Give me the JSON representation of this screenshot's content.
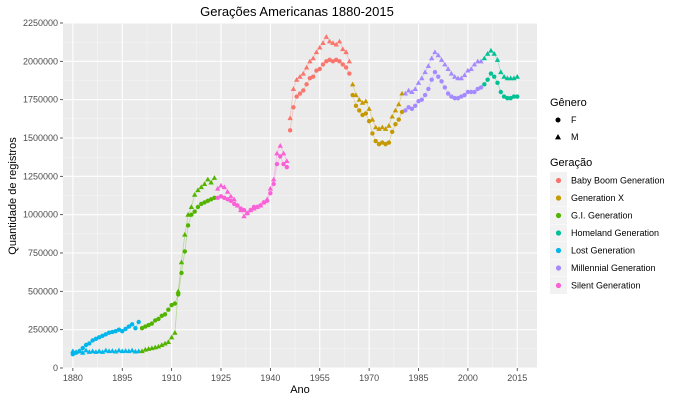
{
  "chart_data": {
    "type": "scatter",
    "title": "Gerações Americanas 1880-2015",
    "xlabel": "Ano",
    "ylabel": "Quantidade de registros",
    "xlim": [
      1877,
      2021
    ],
    "ylim": [
      0,
      2250000
    ],
    "x_ticks": [
      1880,
      1895,
      1910,
      1925,
      1940,
      1955,
      1970,
      1985,
      2000,
      2015
    ],
    "y_ticks": [
      0,
      250000,
      500000,
      750000,
      1000000,
      1250000,
      1500000,
      1750000,
      2000000,
      2250000
    ],
    "y_tick_labels": [
      "0",
      "250000",
      "500000",
      "750000",
      "1000000",
      "1250000",
      "1500000",
      "1750000",
      "2000000",
      "2250000"
    ],
    "grid": true,
    "legend_position": "right",
    "shape_legend": {
      "title": "Gênero",
      "entries": [
        {
          "label": "F",
          "shape": "circle"
        },
        {
          "label": "M",
          "shape": "triangle"
        }
      ]
    },
    "color_legend": {
      "title": "Geração",
      "entries": [
        {
          "label": "Baby Boom Generation",
          "color": "#F8766D"
        },
        {
          "label": "Generation X",
          "color": "#C49A00"
        },
        {
          "label": "G.I. Generation",
          "color": "#53B400"
        },
        {
          "label": "Homeland Generation",
          "color": "#00C094"
        },
        {
          "label": "Lost Generation",
          "color": "#00B6EB"
        },
        {
          "label": "Millennial Generation",
          "color": "#A58AFF"
        },
        {
          "label": "Silent Generation",
          "color": "#FB61D7"
        }
      ]
    },
    "series": [
      {
        "generation": "Lost Generation",
        "gender": "F",
        "color": "#00B6EB",
        "x": [
          1880,
          1881,
          1882,
          1883,
          1884,
          1885,
          1886,
          1887,
          1888,
          1889,
          1890,
          1891,
          1892,
          1893,
          1894,
          1895,
          1896,
          1897,
          1898,
          1899,
          1900
        ],
        "y": [
          90000,
          100000,
          110000,
          130000,
          150000,
          160000,
          180000,
          190000,
          200000,
          210000,
          220000,
          230000,
          235000,
          240000,
          250000,
          240000,
          255000,
          270000,
          285000,
          260000,
          300000
        ]
      },
      {
        "generation": "Lost Generation",
        "gender": "M",
        "color": "#00B6EB",
        "x": [
          1880,
          1881,
          1882,
          1883,
          1884,
          1885,
          1886,
          1887,
          1888,
          1889,
          1890,
          1891,
          1892,
          1893,
          1894,
          1895,
          1896,
          1897,
          1898,
          1899,
          1900
        ],
        "y": [
          110000,
          105000,
          110000,
          100000,
          115000,
          105000,
          110000,
          105000,
          110000,
          105000,
          115000,
          110000,
          112000,
          108000,
          115000,
          110000,
          112000,
          110000,
          115000,
          108000,
          110000
        ]
      },
      {
        "generation": "G.I. Generation",
        "gender": "F",
        "color": "#53B400",
        "x": [
          1901,
          1902,
          1903,
          1904,
          1905,
          1906,
          1907,
          1908,
          1909,
          1910,
          1911,
          1912,
          1913,
          1914,
          1915,
          1916,
          1917,
          1918,
          1919,
          1920,
          1921,
          1922,
          1923
        ],
        "y": [
          260000,
          270000,
          280000,
          290000,
          310000,
          320000,
          340000,
          350000,
          380000,
          410000,
          420000,
          480000,
          620000,
          760000,
          930000,
          1000000,
          1020000,
          1050000,
          1070000,
          1080000,
          1090000,
          1100000,
          1110000
        ]
      },
      {
        "generation": "G.I. Generation",
        "gender": "M",
        "color": "#53B400",
        "x": [
          1901,
          1902,
          1903,
          1904,
          1905,
          1906,
          1907,
          1908,
          1909,
          1910,
          1911,
          1912,
          1913,
          1914,
          1915,
          1916,
          1917,
          1918,
          1919,
          1920,
          1921,
          1922,
          1923
        ],
        "y": [
          110000,
          120000,
          125000,
          130000,
          135000,
          140000,
          150000,
          160000,
          170000,
          200000,
          230000,
          500000,
          690000,
          870000,
          1000000,
          1050000,
          1130000,
          1160000,
          1180000,
          1200000,
          1230000,
          1210000,
          1240000
        ]
      },
      {
        "generation": "Silent Generation",
        "gender": "F",
        "color": "#FB61D7",
        "x": [
          1924,
          1925,
          1926,
          1927,
          1928,
          1929,
          1930,
          1931,
          1932,
          1933,
          1934,
          1935,
          1936,
          1937,
          1938,
          1939,
          1940,
          1941,
          1942,
          1943,
          1944,
          1945
        ],
        "y": [
          1110000,
          1120000,
          1110000,
          1100000,
          1090000,
          1070000,
          1060000,
          1040000,
          1030000,
          1010000,
          1030000,
          1050000,
          1050000,
          1060000,
          1080000,
          1090000,
          1140000,
          1200000,
          1330000,
          1380000,
          1330000,
          1310000
        ]
      },
      {
        "generation": "Silent Generation",
        "gender": "M",
        "color": "#FB61D7",
        "x": [
          1924,
          1925,
          1926,
          1927,
          1928,
          1929,
          1930,
          1931,
          1932,
          1933,
          1934,
          1935,
          1936,
          1937,
          1938,
          1939,
          1940,
          1941,
          1942,
          1943,
          1944,
          1945
        ],
        "y": [
          1170000,
          1190000,
          1180000,
          1150000,
          1120000,
          1100000,
          1060000,
          1030000,
          990000,
          1010000,
          1030000,
          1040000,
          1050000,
          1060000,
          1080000,
          1100000,
          1170000,
          1230000,
          1400000,
          1450000,
          1400000,
          1350000
        ]
      },
      {
        "generation": "Baby Boom Generation",
        "gender": "F",
        "color": "#F8766D",
        "x": [
          1946,
          1947,
          1948,
          1949,
          1950,
          1951,
          1952,
          1953,
          1954,
          1955,
          1956,
          1957,
          1958,
          1959,
          1960,
          1961,
          1962,
          1963,
          1964
        ],
        "y": [
          1550000,
          1700000,
          1770000,
          1790000,
          1810000,
          1850000,
          1890000,
          1900000,
          1940000,
          1950000,
          1980000,
          2000000,
          2010000,
          2000000,
          2010000,
          2000000,
          1980000,
          1960000,
          1920000
        ]
      },
      {
        "generation": "Baby Boom Generation",
        "gender": "M",
        "color": "#F8766D",
        "x": [
          1946,
          1947,
          1948,
          1949,
          1950,
          1951,
          1952,
          1953,
          1954,
          1955,
          1956,
          1957,
          1958,
          1959,
          1960,
          1961,
          1962,
          1963,
          1964
        ],
        "y": [
          1630000,
          1820000,
          1880000,
          1900000,
          1920000,
          1960000,
          2000000,
          2020000,
          2060000,
          2090000,
          2120000,
          2160000,
          2130000,
          2120000,
          2110000,
          2130000,
          2080000,
          2060000,
          2000000
        ]
      },
      {
        "generation": "Generation X",
        "gender": "F",
        "color": "#C49A00",
        "x": [
          1965,
          1966,
          1967,
          1968,
          1969,
          1970,
          1971,
          1972,
          1973,
          1974,
          1975,
          1976,
          1977,
          1978,
          1979,
          1980
        ],
        "y": [
          1780000,
          1710000,
          1680000,
          1650000,
          1660000,
          1610000,
          1530000,
          1480000,
          1460000,
          1470000,
          1460000,
          1470000,
          1540000,
          1590000,
          1620000,
          1670000
        ]
      },
      {
        "generation": "Generation X",
        "gender": "M",
        "color": "#C49A00",
        "x": [
          1965,
          1966,
          1967,
          1968,
          1969,
          1970,
          1971,
          1972,
          1973,
          1974,
          1975,
          1976,
          1977,
          1978,
          1979,
          1980
        ],
        "y": [
          1850000,
          1780000,
          1750000,
          1730000,
          1740000,
          1690000,
          1620000,
          1570000,
          1560000,
          1570000,
          1560000,
          1580000,
          1640000,
          1680000,
          1720000,
          1790000
        ]
      },
      {
        "generation": "Millennial Generation",
        "gender": "F",
        "color": "#A58AFF",
        "x": [
          1981,
          1982,
          1983,
          1984,
          1985,
          1986,
          1987,
          1988,
          1989,
          1990,
          1991,
          1992,
          1993,
          1994,
          1995,
          1996,
          1997,
          1998,
          1999,
          2000,
          2001,
          2002,
          2003,
          2004
        ],
        "y": [
          1680000,
          1700000,
          1690000,
          1710000,
          1740000,
          1750000,
          1780000,
          1820000,
          1880000,
          1930000,
          1900000,
          1870000,
          1830000,
          1790000,
          1770000,
          1760000,
          1760000,
          1770000,
          1780000,
          1800000,
          1800000,
          1800000,
          1820000,
          1830000
        ]
      },
      {
        "generation": "Millennial Generation",
        "gender": "M",
        "color": "#A58AFF",
        "x": [
          1981,
          1982,
          1983,
          1984,
          1985,
          1986,
          1987,
          1988,
          1989,
          1990,
          1991,
          1992,
          1993,
          1994,
          1995,
          1996,
          1997,
          1998,
          1999,
          2000,
          2001,
          2002,
          2003,
          2004
        ],
        "y": [
          1790000,
          1810000,
          1800000,
          1820000,
          1860000,
          1890000,
          1930000,
          1970000,
          2020000,
          2060000,
          2040000,
          2010000,
          1980000,
          1950000,
          1920000,
          1900000,
          1890000,
          1890000,
          1910000,
          1940000,
          1950000,
          1980000,
          2000000,
          2000000
        ]
      },
      {
        "generation": "Homeland Generation",
        "gender": "F",
        "color": "#00C094",
        "x": [
          2005,
          2006,
          2007,
          2008,
          2009,
          2010,
          2011,
          2012,
          2013,
          2014,
          2015
        ],
        "y": [
          1850000,
          1880000,
          1920000,
          1900000,
          1860000,
          1800000,
          1770000,
          1760000,
          1760000,
          1770000,
          1770000
        ]
      },
      {
        "generation": "Homeland Generation",
        "gender": "M",
        "color": "#00C094",
        "x": [
          2005,
          2006,
          2007,
          2008,
          2009,
          2010,
          2011,
          2012,
          2013,
          2014,
          2015
        ],
        "y": [
          2020000,
          2050000,
          2070000,
          2050000,
          2010000,
          1930000,
          1900000,
          1890000,
          1890000,
          1890000,
          1900000
        ]
      }
    ]
  }
}
